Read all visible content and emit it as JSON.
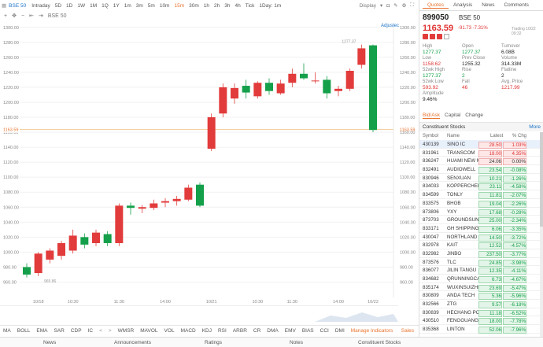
{
  "toolbar": {
    "symbol": "BSE 50",
    "timeframes": [
      "Intraday",
      "5D",
      "1D",
      "1W",
      "1M",
      "1Q",
      "1Y",
      "1m",
      "3m",
      "5m",
      "10m",
      "15m",
      "30m",
      "1h",
      "2h",
      "3h",
      "4h",
      "Tick",
      "1Day: 1m"
    ],
    "active_timeframe": "15m",
    "display_label": "Display",
    "symbol2": "BSE 50",
    "adjust_label": "Adjustec"
  },
  "chart_data": {
    "type": "candlestick",
    "y_ticks": [
      1300.0,
      1280.0,
      1260.0,
      1240.0,
      1220.0,
      1200.0,
      1180.0,
      1160.0,
      1140.0,
      1120.0,
      1100.0,
      1080.0,
      1060.0,
      1040.0,
      1020.0,
      1000.0,
      980.0,
      960.0
    ],
    "ylim": [
      950,
      1305
    ],
    "x_ticks": [
      "10/18",
      "10:30",
      "11:30",
      "14:00",
      "10/21",
      "10:30",
      "11:30",
      "14:00",
      "10/22"
    ],
    "current_price_label": "1163.59",
    "high_marker": "1277.37",
    "low_marker": "965.86",
    "candles": [
      {
        "o": 980,
        "h": 985,
        "l": 966,
        "c": 970
      },
      {
        "o": 972,
        "h": 1000,
        "l": 968,
        "c": 998
      },
      {
        "o": 990,
        "h": 1005,
        "l": 985,
        "c": 1002
      },
      {
        "o": 995,
        "h": 1015,
        "l": 990,
        "c": 1012
      },
      {
        "o": 1002,
        "h": 1030,
        "l": 998,
        "c": 1022
      },
      {
        "o": 1020,
        "h": 1025,
        "l": 1005,
        "c": 1010
      },
      {
        "o": 1012,
        "h": 1030,
        "l": 1008,
        "c": 1026
      },
      {
        "o": 1024,
        "h": 1028,
        "l": 1008,
        "c": 1012
      },
      {
        "o": 1012,
        "h": 1065,
        "l": 1008,
        "c": 1062
      },
      {
        "o": 1062,
        "h": 1066,
        "l": 1050,
        "c": 1059
      },
      {
        "o": 1058,
        "h": 1063,
        "l": 1052,
        "c": 1060
      },
      {
        "o": 1059,
        "h": 1070,
        "l": 1056,
        "c": 1065
      },
      {
        "o": 1066,
        "h": 1072,
        "l": 1060,
        "c": 1068
      },
      {
        "o": 1068,
        "h": 1075,
        "l": 1062,
        "c": 1071
      },
      {
        "o": 1070,
        "h": 1090,
        "l": 1068,
        "c": 1086
      },
      {
        "o": 1090,
        "h": 1093,
        "l": 1060,
        "c": 1062
      },
      {
        "o": 1138,
        "h": 1185,
        "l": 1135,
        "c": 1180
      },
      {
        "o": 1185,
        "h": 1225,
        "l": 1180,
        "c": 1220
      },
      {
        "o": 1205,
        "h": 1225,
        "l": 1198,
        "c": 1219
      },
      {
        "o": 1222,
        "h": 1230,
        "l": 1205,
        "c": 1213
      },
      {
        "o": 1208,
        "h": 1228,
        "l": 1205,
        "c": 1226
      },
      {
        "o": 1226,
        "h": 1232,
        "l": 1210,
        "c": 1215
      },
      {
        "o": 1212,
        "h": 1230,
        "l": 1210,
        "c": 1225
      },
      {
        "o": 1226,
        "h": 1245,
        "l": 1220,
        "c": 1238
      },
      {
        "o": 1238,
        "h": 1252,
        "l": 1230,
        "c": 1232
      },
      {
        "o": 1228,
        "h": 1240,
        "l": 1225,
        "c": 1229
      },
      {
        "o": 1230,
        "h": 1235,
        "l": 1205,
        "c": 1212
      },
      {
        "o": 1215,
        "h": 1222,
        "l": 1208,
        "c": 1218
      },
      {
        "o": 1218,
        "h": 1245,
        "l": 1215,
        "c": 1242
      },
      {
        "o": 1250,
        "h": 1277,
        "l": 1245,
        "c": 1272
      },
      {
        "o": 1276,
        "h": 1277,
        "l": 1160,
        "c": 1163
      }
    ]
  },
  "indicators": [
    "MA",
    "BOLL",
    "EMA",
    "SAR",
    "CDP",
    "IC",
    "<",
    ">",
    "WMSR",
    "MAVOL",
    "VOL",
    "MACD",
    "KDJ",
    "RSI",
    "ARBR",
    "CR",
    "DMA",
    "EMV",
    "BIAS",
    "CCI",
    "DMI"
  ],
  "indicators_manage": "Manage Indicators",
  "indicators_sales": "Sales",
  "bottom_tabs": [
    "News",
    "Announcements",
    "Ratings",
    "Notes",
    "Constituent Stocks"
  ],
  "right": {
    "tabs": [
      "Quotes",
      "Analysis",
      "News",
      "Comments"
    ],
    "code": "899050",
    "name": "BSE 50",
    "price": "1163.59",
    "change": "-91.73 -7.31%",
    "trading_time": "Trading 10/22 09:32",
    "stats": [
      [
        {
          "label": "High",
          "value": "1277.37",
          "color": "green"
        },
        {
          "label": "Open",
          "value": "1277.37",
          "color": "green"
        },
        {
          "label": "Turnover",
          "value": "6.08B",
          "color": "black"
        }
      ],
      [
        {
          "label": "Low",
          "value": "1158.62",
          "color": "red"
        },
        {
          "label": "Prev Close",
          "value": "1255.32",
          "color": "black"
        },
        {
          "label": "Volume",
          "value": "314.33M",
          "color": "black"
        }
      ],
      [
        {
          "label": "52wk High",
          "value": "1277.37",
          "color": "green"
        },
        {
          "label": "Rise",
          "value": "2",
          "color": "green"
        },
        {
          "label": "Flatline",
          "value": "2",
          "color": "black"
        }
      ],
      [
        {
          "label": "52wk Low",
          "value": "593.92",
          "color": "red"
        },
        {
          "label": "Fall",
          "value": "46",
          "color": "red"
        },
        {
          "label": "Avg. Price",
          "value": "1217.99",
          "color": "red"
        }
      ],
      [
        {
          "label": "Amplitude",
          "value": "9.46%",
          "color": "black"
        }
      ]
    ],
    "subtabs": [
      "Bid/Ask",
      "Capital",
      "Change"
    ],
    "constituent_title": "Constituent Stocks",
    "more_label": "More",
    "table_headers": [
      "Symbol",
      "Name",
      "Latest",
      "% Chg"
    ],
    "rows": [
      {
        "symbol": "430139",
        "name": "SINO IC",
        "latest": "28.50",
        "chg": "1.03%",
        "dir": "up"
      },
      {
        "symbol": "831961",
        "name": "TRANSCOM",
        "latest": "18.00",
        "chg": "4.35%",
        "dir": "up"
      },
      {
        "symbol": "836247",
        "name": "HUAMI NEW MA",
        "latest": "24.06",
        "chg": "0.00%",
        "dir": "flat"
      },
      {
        "symbol": "832491",
        "name": "AUDIOWELL",
        "latest": "23.54",
        "chg": "-0.08%",
        "dir": "down"
      },
      {
        "symbol": "830946",
        "name": "SENXUAN",
        "latest": "10.21",
        "chg": "-1.26%",
        "dir": "down"
      },
      {
        "symbol": "834033",
        "name": "KOPPERCHEM",
        "latest": "23.11",
        "chg": "-4.58%",
        "dir": "down"
      },
      {
        "symbol": "834599",
        "name": "TONLY",
        "latest": "11.81",
        "chg": "-2.07%",
        "dir": "down"
      },
      {
        "symbol": "833575",
        "name": "BHGB",
        "latest": "19.04",
        "chg": "-2.26%",
        "dir": "down"
      },
      {
        "symbol": "873806",
        "name": "YXY",
        "latest": "17.68",
        "chg": "-0.28%",
        "dir": "down"
      },
      {
        "symbol": "873703",
        "name": "GROUNDSUN",
        "latest": "25.00",
        "chg": "-2.34%",
        "dir": "down"
      },
      {
        "symbol": "833171",
        "name": "GH SHIPPING",
        "latest": "6.06",
        "chg": "-3.35%",
        "dir": "down"
      },
      {
        "symbol": "430047",
        "name": "NORTHLAND B",
        "latest": "14.50",
        "chg": "-3.72%",
        "dir": "down"
      },
      {
        "symbol": "832978",
        "name": "KAIT",
        "latest": "12.52",
        "chg": "-4.57%",
        "dir": "down"
      },
      {
        "symbol": "832982",
        "name": "JINBO",
        "latest": "237.50",
        "chg": "-3.77%",
        "dir": "down"
      },
      {
        "symbol": "873576",
        "name": "TLC",
        "latest": "24.85",
        "chg": "-3.98%",
        "dir": "down"
      },
      {
        "symbol": "836077",
        "name": "JILIN TANGU",
        "latest": "12.35",
        "chg": "-4.11%",
        "dir": "down"
      },
      {
        "symbol": "834682",
        "name": "QRUNNINGCA",
        "latest": "6.73",
        "chg": "-4.67%",
        "dir": "down"
      },
      {
        "symbol": "835174",
        "name": "WUXINSUIZHI",
        "latest": "23.69",
        "chg": "-5.47%",
        "dir": "down"
      },
      {
        "symbol": "830809",
        "name": "ANDA TECH",
        "latest": "5.36",
        "chg": "-5.96%",
        "dir": "down"
      },
      {
        "symbol": "832566",
        "name": "ZTG",
        "latest": "9.57",
        "chg": "-6.18%",
        "dir": "down"
      },
      {
        "symbol": "830839",
        "name": "HECHANG POL",
        "latest": "11.18",
        "chg": "-6.52%",
        "dir": "down"
      },
      {
        "symbol": "430510",
        "name": "FENGGUANG P",
        "latest": "18.00",
        "chg": "-7.78%",
        "dir": "down"
      },
      {
        "symbol": "835368",
        "name": "LINTON",
        "latest": "52.06",
        "chg": "-7.96%",
        "dir": "down"
      }
    ]
  },
  "colors": {
    "up": "#e23b3b",
    "down": "#14a04a",
    "accent": "#e8742e",
    "link": "#1a73c8"
  }
}
